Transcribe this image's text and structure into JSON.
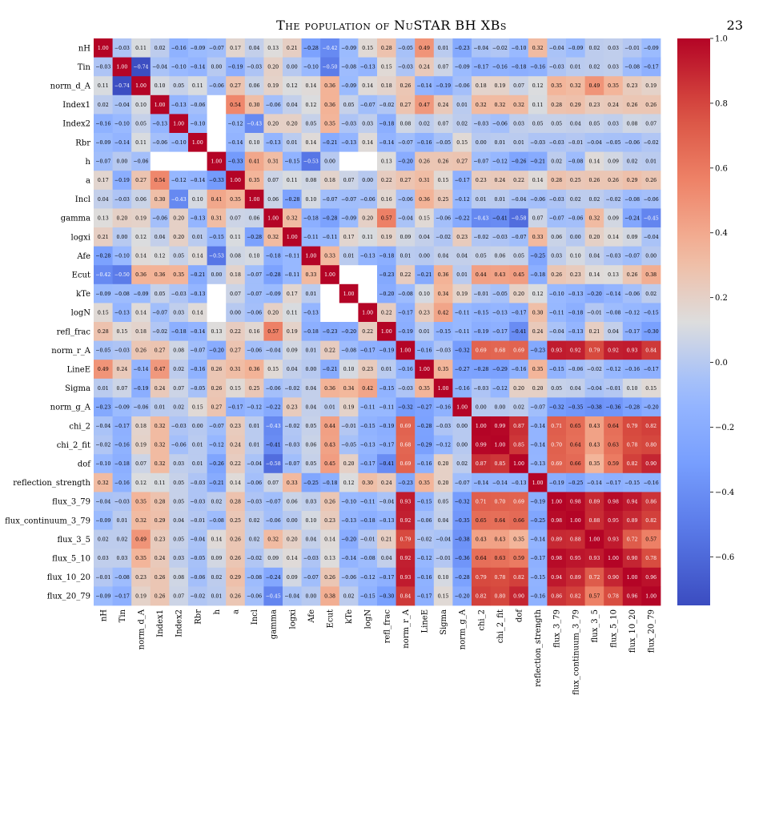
{
  "header": {
    "title": "The population of NuSTAR BH XBs",
    "page_number": "23"
  },
  "chart_data": {
    "type": "heatmap",
    "title": "",
    "xlabel": "",
    "ylabel": "",
    "colormap": "coolwarm",
    "color_range": [
      -0.75,
      1.0
    ],
    "missing_color": "#ffffff",
    "colorbar": {
      "placement": "right",
      "ticks": [
        1.0,
        0.8,
        0.6,
        0.4,
        0.2,
        0.0,
        -0.2,
        -0.4,
        -0.6
      ],
      "tick_labels": [
        "1.0",
        "0.8",
        "0.6",
        "0.4",
        "0.2",
        "0.0",
        "−0.2",
        "−0.4",
        "−0.6"
      ]
    },
    "labels": [
      "nH",
      "Tin",
      "norm_d_A",
      "Index1",
      "Index2",
      "Rbr",
      "h",
      "a",
      "Incl",
      "gamma",
      "logxi",
      "Afe",
      "Ecut",
      "kTe",
      "logN",
      "refl_frac",
      "norm_r_A",
      "LineE",
      "Sigma",
      "norm_g_A",
      "chi_2",
      "chi_2_fit",
      "dof",
      "reflection_strength",
      "flux_3_79",
      "flux_continuum_3_79",
      "flux_3_5",
      "flux_5_10",
      "flux_10_20",
      "flux_20_79"
    ],
    "display_labels": [
      "nH",
      "Tin",
      "norm_d_A",
      "Index1",
      "Index2",
      "Rbr",
      "h",
      "a",
      "Incl",
      "gamma",
      "logxi",
      "Afe",
      "Ecut",
      "kTe",
      "logN",
      "refl_frac",
      "norm_r_A",
      "LineE",
      "Sigma",
      "norm_g_A",
      "chi_2",
      "chi_2_fit",
      "dof",
      "reflection_strength",
      "flux_3_79",
      "flux_continuum_3_79",
      "flux_3_5",
      "flux_5_10",
      "flux_10_20",
      "flux_20_79"
    ],
    "matrix": [
      [
        1.0,
        -0.03,
        0.11,
        0.02,
        -0.16,
        -0.09,
        -0.07,
        0.17,
        0.04,
        0.13,
        0.21,
        -0.28,
        -0.42,
        -0.09,
        0.15,
        0.28,
        -0.05,
        0.49,
        0.01,
        -0.23,
        -0.04,
        -0.02,
        -0.1,
        0.32,
        -0.04,
        -0.09,
        0.02,
        0.03,
        -0.01,
        -0.09
      ],
      [
        -0.03,
        1.0,
        -0.74,
        -0.04,
        -0.1,
        -0.14,
        0.0,
        -0.19,
        -0.03,
        0.2,
        -0.0,
        -0.1,
        -0.5,
        -0.08,
        -0.13,
        0.15,
        -0.03,
        0.24,
        0.07,
        -0.09,
        -0.17,
        -0.16,
        -0.18,
        -0.16,
        -0.03,
        0.01,
        0.02,
        0.03,
        -0.08,
        -0.17
      ],
      [
        0.11,
        -0.74,
        1.0,
        0.1,
        0.05,
        0.11,
        -0.06,
        0.27,
        0.06,
        0.19,
        0.12,
        0.14,
        0.36,
        -0.09,
        0.14,
        0.18,
        0.26,
        -0.14,
        -0.19,
        -0.06,
        0.18,
        0.19,
        0.07,
        0.12,
        0.35,
        0.32,
        0.49,
        0.35,
        0.23,
        0.19
      ],
      [
        0.02,
        -0.04,
        0.1,
        1.0,
        -0.13,
        -0.06,
        null,
        0.54,
        0.3,
        -0.06,
        0.04,
        0.12,
        0.36,
        0.05,
        -0.07,
        -0.02,
        0.27,
        0.47,
        0.24,
        0.01,
        0.32,
        0.32,
        0.32,
        0.11,
        0.28,
        0.29,
        0.23,
        0.24,
        0.26,
        0.26
      ],
      [
        -0.16,
        -0.1,
        0.05,
        -0.13,
        1.0,
        -0.1,
        null,
        -0.12,
        -0.43,
        0.2,
        0.2,
        0.05,
        0.35,
        -0.03,
        0.03,
        -0.18,
        0.08,
        0.02,
        0.07,
        0.02,
        -0.03,
        -0.06,
        0.03,
        0.05,
        0.05,
        0.04,
        0.05,
        0.03,
        0.08,
        0.07
      ],
      [
        -0.09,
        -0.14,
        0.11,
        -0.06,
        -0.1,
        1.0,
        null,
        -0.14,
        0.1,
        -0.13,
        0.01,
        0.14,
        -0.21,
        -0.13,
        0.14,
        -0.14,
        -0.07,
        -0.16,
        -0.05,
        0.15,
        0.0,
        0.01,
        0.01,
        -0.03,
        -0.03,
        -0.01,
        -0.04,
        -0.05,
        -0.06,
        -0.02
      ],
      [
        -0.07,
        0.0,
        -0.06,
        null,
        null,
        null,
        1.0,
        -0.33,
        0.41,
        0.31,
        -0.15,
        -0.53,
        0.0,
        null,
        null,
        0.13,
        -0.2,
        0.26,
        0.26,
        0.27,
        -0.07,
        -0.12,
        -0.26,
        -0.21,
        0.02,
        -0.08,
        0.14,
        0.09,
        0.02,
        0.01
      ],
      [
        0.17,
        -0.19,
        0.27,
        0.54,
        -0.12,
        -0.14,
        -0.33,
        1.0,
        0.35,
        0.07,
        0.11,
        0.08,
        0.18,
        0.07,
        -0.0,
        0.22,
        0.27,
        0.31,
        0.15,
        -0.17,
        0.23,
        0.24,
        0.22,
        0.14,
        0.28,
        0.25,
        0.26,
        0.26,
        0.29,
        0.26
      ],
      [
        0.04,
        -0.03,
        0.06,
        0.3,
        -0.43,
        0.1,
        0.41,
        0.35,
        1.0,
        0.06,
        -0.28,
        0.1,
        -0.07,
        -0.07,
        -0.06,
        0.16,
        -0.06,
        0.36,
        0.25,
        -0.12,
        0.01,
        0.01,
        -0.04,
        -0.06,
        -0.03,
        0.02,
        0.02,
        -0.02,
        -0.08,
        -0.06
      ],
      [
        0.13,
        0.2,
        0.19,
        -0.06,
        0.2,
        -0.13,
        0.31,
        0.07,
        0.06,
        1.0,
        0.32,
        -0.18,
        -0.28,
        -0.09,
        0.2,
        0.57,
        -0.04,
        0.15,
        -0.06,
        -0.22,
        -0.43,
        -0.41,
        -0.58,
        0.07,
        -0.07,
        -0.06,
        0.32,
        0.09,
        -0.24,
        -0.45
      ],
      [
        0.21,
        -0.0,
        0.12,
        0.04,
        0.2,
        0.01,
        -0.15,
        0.11,
        -0.28,
        0.32,
        1.0,
        -0.11,
        -0.11,
        0.17,
        0.11,
        0.19,
        0.09,
        0.04,
        -0.02,
        0.23,
        -0.02,
        -0.03,
        -0.07,
        0.33,
        0.06,
        -0.0,
        0.2,
        0.14,
        0.09,
        -0.04
      ],
      [
        -0.28,
        -0.1,
        0.14,
        0.12,
        0.05,
        0.14,
        -0.53,
        0.08,
        0.1,
        -0.18,
        -0.11,
        1.0,
        0.33,
        0.01,
        -0.13,
        -0.18,
        0.01,
        -0.0,
        0.04,
        0.04,
        0.05,
        0.06,
        0.05,
        -0.25,
        0.03,
        0.1,
        0.04,
        -0.03,
        -0.07,
        0.0
      ],
      [
        -0.42,
        -0.5,
        0.36,
        0.36,
        0.35,
        -0.21,
        0.0,
        0.18,
        -0.07,
        -0.28,
        -0.11,
        0.33,
        1.0,
        null,
        null,
        -0.23,
        0.22,
        -0.21,
        0.36,
        0.01,
        0.44,
        0.43,
        0.45,
        -0.18,
        0.26,
        0.23,
        0.14,
        0.13,
        0.26,
        0.38
      ],
      [
        -0.09,
        -0.08,
        -0.09,
        0.05,
        -0.03,
        -0.13,
        null,
        0.07,
        -0.07,
        -0.09,
        0.17,
        0.01,
        null,
        1.0,
        null,
        -0.2,
        -0.08,
        0.1,
        0.34,
        0.19,
        -0.01,
        -0.05,
        0.2,
        0.12,
        -0.1,
        -0.13,
        -0.2,
        -0.14,
        -0.06,
        0.02
      ],
      [
        0.15,
        -0.13,
        0.14,
        -0.07,
        0.03,
        0.14,
        null,
        -0.0,
        -0.06,
        0.2,
        0.11,
        -0.13,
        null,
        null,
        1.0,
        0.22,
        -0.17,
        0.23,
        0.42,
        -0.11,
        -0.15,
        -0.13,
        -0.17,
        0.3,
        -0.11,
        -0.18,
        -0.01,
        -0.08,
        -0.12,
        -0.15
      ],
      [
        0.28,
        0.15,
        0.18,
        -0.02,
        -0.18,
        -0.14,
        0.13,
        0.22,
        0.16,
        0.57,
        0.19,
        -0.18,
        -0.23,
        -0.2,
        0.22,
        1.0,
        -0.19,
        0.01,
        -0.15,
        -0.11,
        -0.19,
        -0.17,
        -0.41,
        0.24,
        -0.04,
        -0.13,
        0.21,
        0.04,
        -0.17,
        -0.3
      ],
      [
        -0.05,
        -0.03,
        0.26,
        0.27,
        0.08,
        -0.07,
        -0.2,
        0.27,
        -0.06,
        -0.04,
        0.09,
        0.01,
        0.22,
        -0.08,
        -0.17,
        -0.19,
        1.0,
        -0.16,
        -0.03,
        -0.32,
        0.69,
        0.68,
        0.69,
        -0.23,
        0.93,
        0.92,
        0.79,
        0.92,
        0.93,
        0.84
      ],
      [
        0.49,
        0.24,
        -0.14,
        0.47,
        0.02,
        -0.16,
        0.26,
        0.31,
        0.36,
        0.15,
        0.04,
        -0.0,
        -0.21,
        0.1,
        0.23,
        0.01,
        -0.16,
        1.0,
        0.35,
        -0.27,
        -0.28,
        -0.29,
        -0.16,
        0.35,
        -0.15,
        -0.06,
        -0.02,
        -0.12,
        -0.16,
        -0.17
      ],
      [
        0.01,
        0.07,
        -0.19,
        0.24,
        0.07,
        -0.05,
        0.26,
        0.15,
        0.25,
        -0.06,
        -0.02,
        0.04,
        0.36,
        0.34,
        0.42,
        -0.15,
        -0.03,
        0.35,
        1.0,
        -0.16,
        -0.03,
        -0.12,
        0.2,
        0.2,
        0.05,
        0.04,
        -0.04,
        -0.01,
        0.1,
        0.15
      ],
      [
        -0.23,
        -0.09,
        -0.06,
        0.01,
        0.02,
        0.15,
        0.27,
        -0.17,
        -0.12,
        -0.22,
        0.23,
        0.04,
        0.01,
        0.19,
        -0.11,
        -0.11,
        -0.32,
        -0.27,
        -0.16,
        1.0,
        -0.0,
        -0.0,
        0.02,
        -0.07,
        -0.32,
        -0.35,
        -0.38,
        -0.36,
        -0.28,
        -0.2
      ],
      [
        -0.04,
        -0.17,
        0.18,
        0.32,
        -0.03,
        0.0,
        -0.07,
        0.23,
        0.01,
        -0.43,
        -0.02,
        0.05,
        0.44,
        -0.01,
        -0.15,
        -0.19,
        0.69,
        -0.28,
        -0.03,
        -0.0,
        1.0,
        0.99,
        0.87,
        -0.14,
        0.71,
        0.65,
        0.43,
        0.64,
        0.79,
        0.82
      ],
      [
        -0.02,
        -0.16,
        0.19,
        0.32,
        -0.06,
        0.01,
        -0.12,
        0.24,
        0.01,
        -0.41,
        -0.03,
        0.06,
        0.43,
        -0.05,
        -0.13,
        -0.17,
        0.68,
        -0.29,
        -0.12,
        -0.0,
        0.99,
        1.0,
        0.85,
        -0.14,
        0.7,
        0.64,
        0.43,
        0.63,
        0.78,
        0.8
      ],
      [
        -0.1,
        -0.18,
        0.07,
        0.32,
        0.03,
        0.01,
        -0.26,
        0.22,
        -0.04,
        -0.58,
        -0.07,
        0.05,
        0.45,
        0.2,
        -0.17,
        -0.41,
        0.69,
        -0.16,
        0.2,
        0.02,
        0.87,
        0.85,
        1.0,
        -0.13,
        0.69,
        0.66,
        0.35,
        0.59,
        0.82,
        0.9
      ],
      [
        0.32,
        -0.16,
        0.12,
        0.11,
        0.05,
        -0.03,
        -0.21,
        0.14,
        -0.06,
        0.07,
        0.33,
        -0.25,
        -0.18,
        0.12,
        0.3,
        0.24,
        -0.23,
        0.35,
        0.2,
        -0.07,
        -0.14,
        -0.14,
        -0.13,
        1.0,
        -0.19,
        -0.25,
        -0.14,
        -0.17,
        -0.15,
        -0.16
      ],
      [
        -0.04,
        -0.03,
        0.35,
        0.28,
        0.05,
        -0.03,
        0.02,
        0.28,
        -0.03,
        -0.07,
        0.06,
        0.03,
        0.26,
        -0.1,
        -0.11,
        -0.04,
        0.93,
        -0.15,
        0.05,
        -0.32,
        0.71,
        0.7,
        0.69,
        -0.19,
        1.0,
        0.98,
        0.89,
        0.98,
        0.94,
        0.86
      ],
      [
        -0.09,
        0.01,
        0.32,
        0.29,
        0.04,
        -0.01,
        -0.08,
        0.25,
        0.02,
        -0.06,
        -0.0,
        0.1,
        0.23,
        -0.13,
        -0.18,
        -0.13,
        0.92,
        -0.06,
        0.04,
        -0.35,
        0.65,
        0.64,
        0.66,
        -0.25,
        0.98,
        1.0,
        0.88,
        0.95,
        0.89,
        0.82
      ],
      [
        0.02,
        0.02,
        0.49,
        0.23,
        0.05,
        -0.04,
        0.14,
        0.26,
        0.02,
        0.32,
        0.2,
        0.04,
        0.14,
        -0.2,
        -0.01,
        0.21,
        0.79,
        -0.02,
        -0.04,
        -0.38,
        0.43,
        0.43,
        0.35,
        -0.14,
        0.89,
        0.88,
        1.0,
        0.93,
        0.72,
        0.57
      ],
      [
        0.03,
        0.03,
        0.35,
        0.24,
        0.03,
        -0.05,
        0.09,
        0.26,
        -0.02,
        0.09,
        0.14,
        -0.03,
        0.13,
        -0.14,
        -0.08,
        0.04,
        0.92,
        -0.12,
        -0.01,
        -0.36,
        0.64,
        0.63,
        0.59,
        -0.17,
        0.98,
        0.95,
        0.93,
        1.0,
        0.9,
        0.78
      ],
      [
        -0.01,
        -0.08,
        0.23,
        0.26,
        0.08,
        -0.06,
        0.02,
        0.29,
        -0.08,
        -0.24,
        0.09,
        -0.07,
        0.26,
        -0.06,
        -0.12,
        -0.17,
        0.93,
        -0.16,
        0.1,
        -0.28,
        0.79,
        0.78,
        0.82,
        -0.15,
        0.94,
        0.89,
        0.72,
        0.9,
        1.0,
        0.96
      ],
      [
        -0.09,
        -0.17,
        0.19,
        0.26,
        0.07,
        -0.02,
        0.01,
        0.26,
        -0.06,
        -0.45,
        -0.04,
        0.0,
        0.38,
        0.02,
        -0.15,
        -0.3,
        0.84,
        -0.17,
        0.15,
        -0.2,
        0.82,
        0.8,
        0.9,
        -0.16,
        0.86,
        0.82,
        0.57,
        0.78,
        0.96,
        1.0
      ]
    ]
  }
}
